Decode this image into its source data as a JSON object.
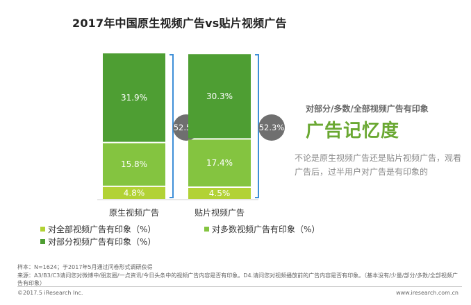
{
  "title": "2017年中国原生视频广告vs贴片视频广告",
  "colors": {
    "dark_green": "#4e9e33",
    "mid_green": "#84c440",
    "light_green": "#b2d235",
    "bracket_blue": "#3e8fd8",
    "bubble_gray": "#6f6f6f",
    "highlight_green": "#6aa832"
  },
  "chart_data": {
    "type": "bar",
    "stacked": true,
    "categories": [
      "原生视频广告",
      "贴片视频广告"
    ],
    "series": [
      {
        "name": "对全部视频广告有印象（%）",
        "values": [
          4.8,
          4.5
        ],
        "labels": [
          "4.8%",
          "4.5%"
        ],
        "color": "#b2d235"
      },
      {
        "name": "对多数视频广告有印象（%）",
        "values": [
          15.8,
          17.4
        ],
        "labels": [
          "15.8%",
          "17.4%"
        ],
        "color": "#84c440"
      },
      {
        "name": "对部分视频广告有印象（%）",
        "values": [
          31.9,
          30.3
        ],
        "labels": [
          "31.9%",
          "30.3%"
        ],
        "color": "#4e9e33"
      }
    ],
    "totals": [
      "52.5%",
      "52.3%"
    ],
    "ylim": [
      0,
      52.5
    ],
    "grid": false,
    "legend_position": "bottom"
  },
  "side_panel": {
    "subtitle": "对部分/多数/全部视频广告有印象",
    "headline": "广告记忆度",
    "description": "不论是原生视频广告还是贴片视频广告，观看广告后，过半用户对广告是有印象的"
  },
  "footer": {
    "sample": "样本：N=1624；于2017年5月通过问卷形式调研获得",
    "source": "来源：A3/B3/C3请问您对微博中/朋友圈/一点资讯/今日头条中的视频广告内容是否有印象。D4.请问您对视频播放前的广告内容是否有印象。（基本没有/少量/部分/多数/全部视频广告有印象）",
    "copyright": "©2017.5 iResearch Inc.",
    "website": "www.iresearch.com.cn"
  }
}
